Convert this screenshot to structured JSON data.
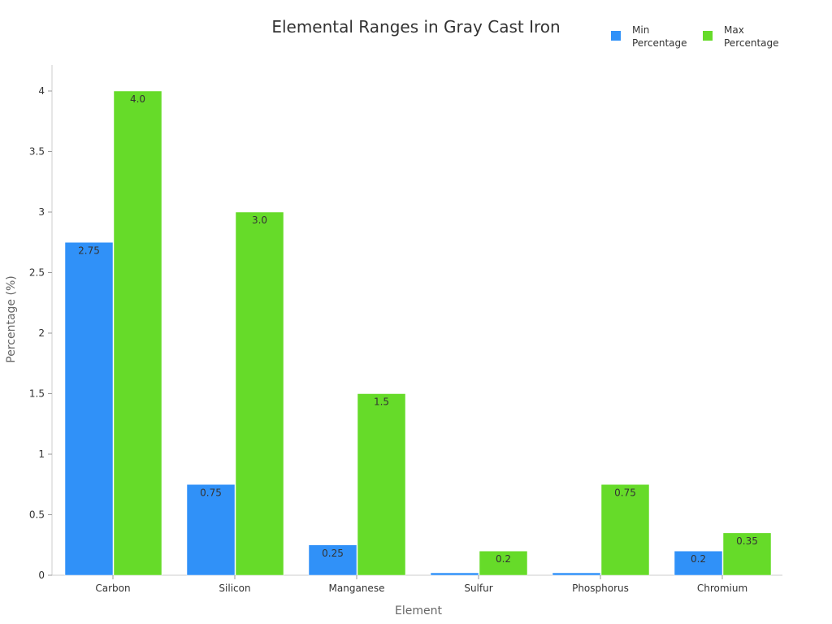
{
  "chart_data": {
    "type": "bar",
    "title": "Elemental Ranges in Gray Cast Iron",
    "xlabel": "Element",
    "ylabel": "Percentage (%)",
    "ylim": [
      0,
      4.2
    ],
    "yticks": [
      "0",
      "0.5",
      "1",
      "1.5",
      "2",
      "2.5",
      "3",
      "3.5",
      "4"
    ],
    "categories": [
      "Carbon",
      "Silicon",
      "Manganese",
      "Sulfur",
      "Phosphorus",
      "Chromium"
    ],
    "series": [
      {
        "name": "Min Percentage",
        "color": "#3091f8",
        "values": [
          2.75,
          0.75,
          0.25,
          0.02,
          0.02,
          0.2
        ],
        "labels": [
          "2.75",
          "0.75",
          "0.25",
          "",
          "",
          "0.2"
        ]
      },
      {
        "name": "Max Percentage",
        "color": "#66db29",
        "values": [
          4.0,
          3.0,
          1.5,
          0.2,
          0.75,
          0.35
        ],
        "labels": [
          "4.0",
          "3.0",
          "1.5",
          "0.2",
          "0.75",
          "0.35"
        ]
      }
    ],
    "legend": {
      "position": "top-right",
      "lines": [
        [
          "Min",
          "Percentage"
        ],
        [
          "Max",
          "Percentage"
        ]
      ]
    },
    "grid": false
  }
}
